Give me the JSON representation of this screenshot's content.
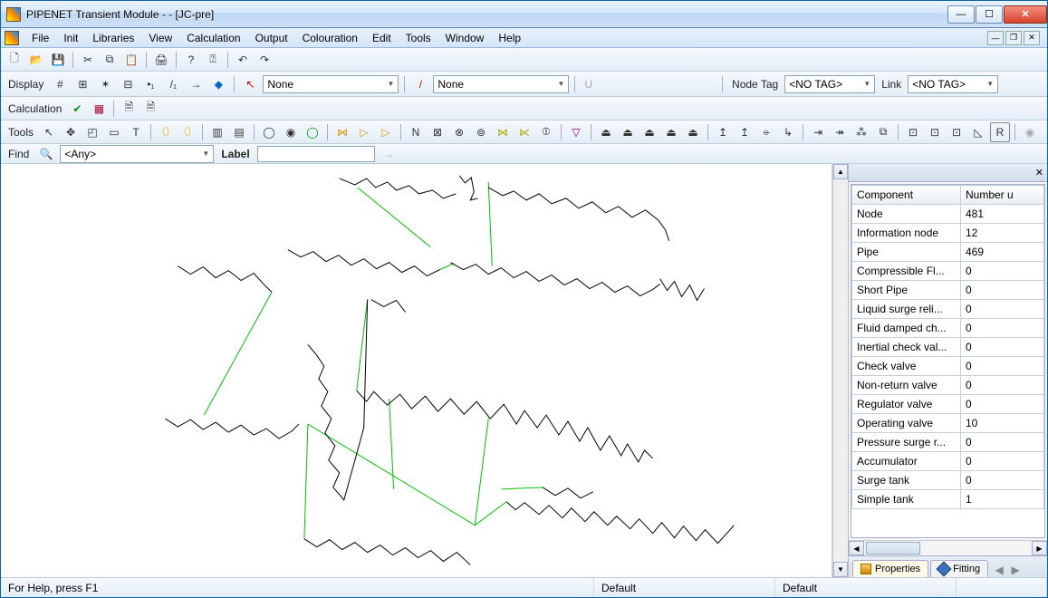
{
  "window": {
    "title": "PIPENET Transient Module -  - [JC-pre]"
  },
  "menu": {
    "items": [
      "File",
      "Init",
      "Libraries",
      "View",
      "Calculation",
      "Output",
      "Colouration",
      "Edit",
      "Tools",
      "Window",
      "Help"
    ]
  },
  "display_row": {
    "label": "Display",
    "none1": "None",
    "none2": "None",
    "u_label": "U",
    "node_tag_label": "Node Tag",
    "node_tag_value": "<NO TAG>",
    "link_label": "Link",
    "link_value": "<NO TAG>"
  },
  "calc_row": {
    "label": "Calculation"
  },
  "tools_row": {
    "label": "Tools"
  },
  "find_row": {
    "label": "Find",
    "any": "<Any>",
    "label_lbl": "Label"
  },
  "side": {
    "header_col1": "Component",
    "header_col2": "Number u",
    "rows": [
      {
        "name": "Node",
        "value": "481"
      },
      {
        "name": "Information node",
        "value": "12"
      },
      {
        "name": "Pipe",
        "value": "469"
      },
      {
        "name": "Compressible Fl...",
        "value": "0"
      },
      {
        "name": "Short Pipe",
        "value": "0"
      },
      {
        "name": "Liquid surge reli...",
        "value": "0"
      },
      {
        "name": "Fluid damped ch...",
        "value": "0"
      },
      {
        "name": "Inertial check val...",
        "value": "0"
      },
      {
        "name": "Check valve",
        "value": "0"
      },
      {
        "name": "Non-return valve",
        "value": "0"
      },
      {
        "name": "Regulator valve",
        "value": "0"
      },
      {
        "name": "Operating valve",
        "value": "10"
      },
      {
        "name": "Pressure surge r...",
        "value": "0"
      },
      {
        "name": "Accumulator",
        "value": "0"
      },
      {
        "name": "Surge tank",
        "value": "0"
      },
      {
        "name": "Simple tank",
        "value": "1"
      }
    ],
    "tab_properties": "Properties",
    "tab_fittings": "Fitting"
  },
  "status": {
    "help": "For Help, press F1",
    "mid": "Default",
    "right": "Default"
  },
  "network": {
    "black_color": "#000000",
    "green_color": "#00c000",
    "stroke_width": 1,
    "paths_black": [
      "M375,196 L392,203 L405,196 L415,206 L428,200 L438,209 L452,204 L463,213 L478,209 L490,218 L504,213",
      "M508,193 L514,201 L521,195 L524,211 L520,220 L528,218",
      "M540,206 L556,215 L568,210 L582,220 L596,213 L610,224 L626,218 L640,229 L655,222 L670,234 L684,227 L699,239 L714,231 L728,242 L736,253 L740,265",
      "M196,293 L210,302 L224,294 L238,306 L252,298 L266,309 L280,301 L290,312 L300,322",
      "M318,275 L332,283 L346,277 L360,288 L374,281 L388,292 L402,285 L416,296 L430,289 L444,300 L458,293 L472,304 L486,297",
      "M498,289 L512,297 L526,291 L540,302 L554,295 L568,306 L582,299 L596,310 L610,303 L624,314 L638,307 L652,318 L666,311 L680,322 L694,315 L708,326 L722,319 L730,313",
      "M182,462 L196,471 L210,463 L224,474 L238,466 L252,477 L266,469 L280,480 L294,473 L308,484 L322,476 L330,468",
      "M340,380 L350,392 L358,404 L352,418 L362,432 L355,448 L366,462 L359,478 L370,492 L363,508 L375,522 L368,538 L380,552 L402,472 L406,330",
      "M410,330 L424,338 L438,331 L448,344",
      "M394,431 L405,443 L413,432 L428,447 L442,435 L455,451 L470,437 L484,454 L498,440 L513,457 L527,443 L542,462 L557,446 L571,468 L580,453 L594,472 L604,458 L618,480 L628,465 L641,487 L650,472 L664,497 L674,481 L687,503 L694,490 L706,510 L713,497 L722,506",
      "M336,595 L350,604 L364,596 L378,607 L392,599 L406,610 L420,602 L434,613 L448,605 L462,616 L476,608 L490,620 L505,610 L520,624",
      "M560,554 L570,563 L580,555 L596,568 L607,558 L622,572 L632,561 L647,576 L657,565 L672,580 L682,570 L697,584 L707,573 L722,589 L732,577 L746,594 L756,581 L770,597 L780,585 L794,600 L804,589 L812,580",
      "M600,538 L614,547 L628,539 L642,550 L656,543",
      "M730,307 L738,320 L746,310 L754,327 L763,314 L771,331 L779,318"
    ],
    "paths_green": [
      "M395,206 L476,272",
      "M540,200 L544,293",
      "M300,322 L225,458",
      "M486,297 L502,290",
      "M406,330 L394,431",
      "M340,468 L525,580 L540,462",
      "M525,580 L560,554",
      "M555,540 L600,538",
      "M340,468 L336,595",
      "M430,440 L435,540"
    ]
  }
}
